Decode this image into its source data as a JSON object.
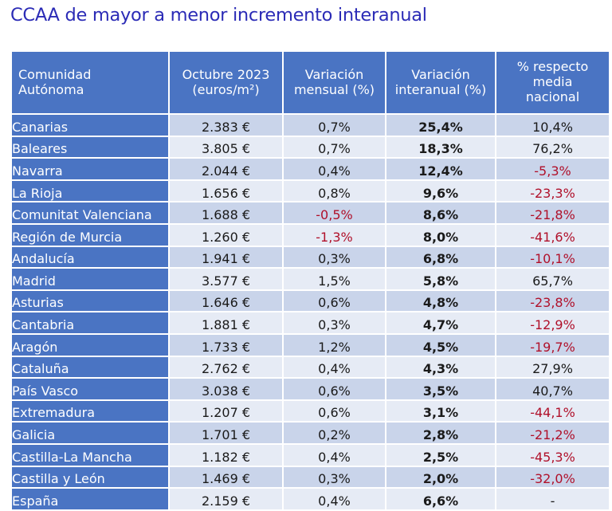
{
  "title": "CCAA de mayor a menor incremento interanual",
  "headers": [
    [
      "Comunidad",
      "Autónoma"
    ],
    [
      "Octubre 2023",
      "(euros/m²)"
    ],
    [
      "Variación",
      "mensual (%)"
    ],
    [
      "Variación",
      "interanual (%)"
    ],
    [
      "% respecto",
      "media",
      "nacional"
    ]
  ],
  "rows": [
    {
      "name": "Canarias",
      "price": "2.383 €",
      "monthly": "0,7%",
      "annual": "25,4%",
      "national": "10,4%"
    },
    {
      "name": "Baleares",
      "price": "3.805 €",
      "monthly": "0,7%",
      "annual": "18,3%",
      "national": "76,2%"
    },
    {
      "name": "Navarra",
      "price": "2.044 €",
      "monthly": "0,4%",
      "annual": "12,4%",
      "national": "-5,3%"
    },
    {
      "name": "La Rioja",
      "price": "1.656 €",
      "monthly": "0,8%",
      "annual": "9,6%",
      "national": "-23,3%"
    },
    {
      "name": "Comunitat Valenciana",
      "price": "1.688 €",
      "monthly": "-0,5%",
      "annual": "8,6%",
      "national": "-21,8%"
    },
    {
      "name": "Región de Murcia",
      "price": "1.260 €",
      "monthly": "-1,3%",
      "annual": "8,0%",
      "national": "-41,6%"
    },
    {
      "name": "Andalucía",
      "price": "1.941 €",
      "monthly": "0,3%",
      "annual": "6,8%",
      "national": "-10,1%"
    },
    {
      "name": "Madrid",
      "price": "3.577 €",
      "monthly": "1,5%",
      "annual": "5,8%",
      "national": "65,7%"
    },
    {
      "name": "Asturias",
      "price": "1.646 €",
      "monthly": "0,6%",
      "annual": "4,8%",
      "national": "-23,8%"
    },
    {
      "name": "Cantabria",
      "price": "1.881 €",
      "monthly": "0,3%",
      "annual": "4,7%",
      "national": "-12,9%"
    },
    {
      "name": "Aragón",
      "price": "1.733 €",
      "monthly": "1,2%",
      "annual": "4,5%",
      "national": "-19,7%"
    },
    {
      "name": "Cataluña",
      "price": "2.762 €",
      "monthly": "0,4%",
      "annual": "4,3%",
      "national": "27,9%"
    },
    {
      "name": "País Vasco",
      "price": "3.038 €",
      "monthly": "0,6%",
      "annual": "3,5%",
      "national": "40,7%"
    },
    {
      "name": "Extremadura",
      "price": "1.207 €",
      "monthly": "0,6%",
      "annual": "3,1%",
      "national": "-44,1%"
    },
    {
      "name": "Galicia",
      "price": "1.701 €",
      "monthly": "0,2%",
      "annual": "2,8%",
      "national": "-21,2%"
    },
    {
      "name": "Castilla-La Mancha",
      "price": "1.182 €",
      "monthly": "0,4%",
      "annual": "2,5%",
      "national": "-45,3%"
    },
    {
      "name": "Castilla y León",
      "price": "1.469 €",
      "monthly": "0,3%",
      "annual": "2,0%",
      "national": "-32,0%"
    },
    {
      "name": "España",
      "price": "2.159 €",
      "monthly": "0,4%",
      "annual": "6,6%",
      "national": "-"
    }
  ]
}
